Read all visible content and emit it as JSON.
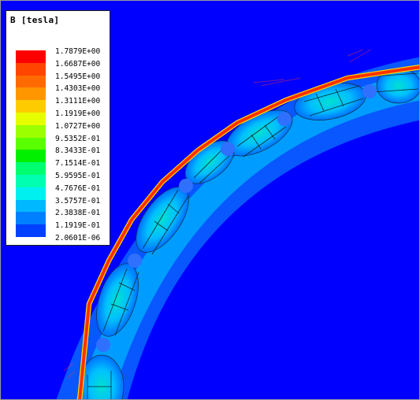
{
  "legend": {
    "title": "B [tesla]",
    "levels": [
      {
        "label": "1.7879E+00",
        "color": "#ff0000"
      },
      {
        "label": "1.6687E+00",
        "color": "#ff4500"
      },
      {
        "label": "1.5495E+00",
        "color": "#ff6a00"
      },
      {
        "label": "1.4303E+00",
        "color": "#ff9600"
      },
      {
        "label": "1.3111E+00",
        "color": "#ffcc00"
      },
      {
        "label": "1.1919E+00",
        "color": "#e6ff00"
      },
      {
        "label": "1.0727E+00",
        "color": "#9cff00"
      },
      {
        "label": "9.5352E-01",
        "color": "#5aff00"
      },
      {
        "label": "8.3433E-01",
        "color": "#00f000"
      },
      {
        "label": "7.1514E-01",
        "color": "#00ff70"
      },
      {
        "label": "5.9595E-01",
        "color": "#00ffb0"
      },
      {
        "label": "4.7676E-01",
        "color": "#00f0f0"
      },
      {
        "label": "3.5757E-01",
        "color": "#00b8ff"
      },
      {
        "label": "2.3838E-01",
        "color": "#0080ff"
      },
      {
        "label": "1.1919E-01",
        "color": "#0040ff"
      },
      {
        "label": "2.0601E-06",
        "color": "#0010ff"
      }
    ]
  },
  "plot": {
    "background_color": "#0000ff"
  }
}
